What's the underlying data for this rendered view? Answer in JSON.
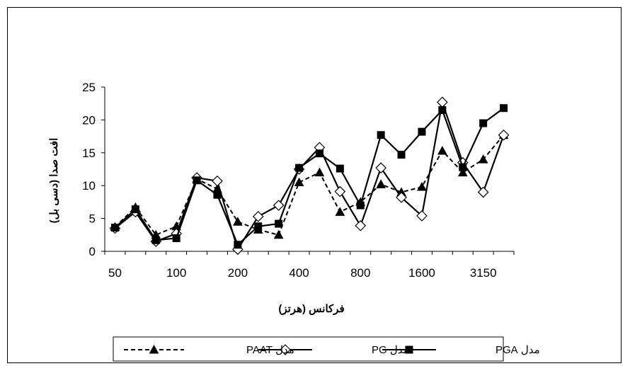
{
  "chart_data": {
    "type": "line",
    "x_tick_labels": [
      "50",
      "100",
      "200",
      "400",
      "800",
      "1600",
      "3150"
    ],
    "x_tick_positions": [
      0,
      3,
      6,
      9,
      12,
      15,
      18
    ],
    "xlabel": "فرکانس (هرتز)",
    "ylabel": "افت صدا (دسی بل)",
    "ylim": [
      0,
      25
    ],
    "yticks": [
      0,
      5,
      10,
      15,
      20,
      25
    ],
    "grid": false,
    "legend_placement": "bottom",
    "series": [
      {
        "name": "مدل PAAT",
        "marker": "triangle",
        "line": "dashed",
        "color": "#000000",
        "values": [
          3.7,
          6.7,
          2.5,
          3.8,
          11.0,
          9.5,
          4.5,
          3.3,
          2.5,
          10.5,
          12.0,
          6.0,
          7.5,
          10.2,
          9.0,
          9.8,
          15.3,
          12.0,
          14.0,
          17.7
        ]
      },
      {
        "name": "مدل PG",
        "marker": "diamond",
        "line": "solid",
        "color": "#000000",
        "values": [
          3.5,
          6.0,
          1.5,
          2.7,
          11.2,
          10.7,
          0.3,
          5.3,
          7.0,
          12.5,
          15.8,
          9.1,
          3.9,
          12.7,
          8.2,
          5.4,
          22.7,
          13.5,
          9.0,
          17.7
        ]
      },
      {
        "name": "مدل PGA",
        "marker": "square",
        "line": "solid",
        "color": "#000000",
        "values": [
          3.6,
          6.4,
          1.7,
          2.0,
          10.8,
          8.6,
          1.0,
          3.8,
          4.2,
          12.7,
          14.9,
          12.6,
          7.0,
          17.7,
          14.7,
          18.2,
          21.5,
          12.8,
          19.5,
          21.8
        ]
      }
    ]
  }
}
